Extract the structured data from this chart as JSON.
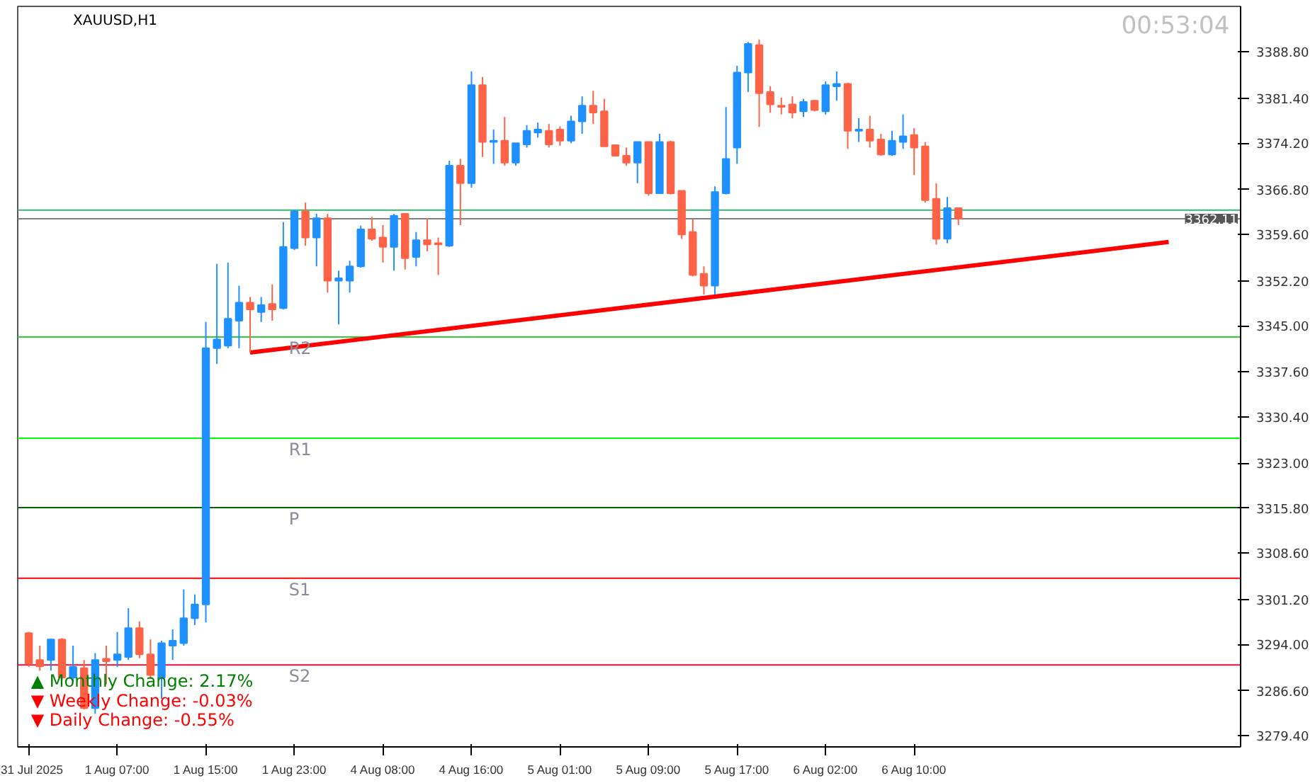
{
  "chart_data": {
    "type": "candlestick",
    "title": "XAUUSD,H1",
    "subtitle": "00:53:04",
    "categories": [
      "31 Jul 2025",
      null,
      null,
      null,
      null,
      null,
      null,
      null,
      "1 Aug 07:00",
      null,
      null,
      null,
      null,
      null,
      null,
      null,
      "1 Aug 15:00",
      null,
      null,
      null,
      null,
      null,
      null,
      null,
      "1 Aug 23:00",
      null,
      null,
      null,
      null,
      null,
      null,
      null,
      "4 Aug 08:00",
      null,
      null,
      null,
      null,
      null,
      null,
      null,
      "4 Aug 16:00",
      null,
      null,
      null,
      null,
      null,
      null,
      null,
      "5 Aug 01:00",
      null,
      null,
      null,
      null,
      null,
      null,
      null,
      "5 Aug 09:00",
      null,
      null,
      null,
      null,
      null,
      null,
      null,
      "5 Aug 17:00",
      null,
      null,
      null,
      null,
      null,
      null,
      null,
      "6 Aug 02:00",
      null,
      null,
      null,
      null,
      null,
      null,
      null,
      "6 Aug 10:00",
      null,
      null,
      null,
      null,
      null,
      null,
      null,
      null,
      null,
      null,
      null,
      null,
      null,
      null,
      null,
      null,
      null,
      null,
      null,
      null,
      null,
      null,
      null,
      null,
      null,
      null,
      null,
      null,
      null
    ],
    "ohlc": [
      [
        3295.8,
        3296.0,
        3290.4,
        3290.9
      ],
      [
        3291.5,
        3293.8,
        3289.8,
        3290.5
      ],
      [
        3291.5,
        3294.8,
        3289.8,
        3294.8
      ],
      [
        3294.8,
        3295.0,
        3288.3,
        3288.7
      ],
      [
        3288.7,
        3293.8,
        3288.0,
        3290.4
      ],
      [
        3290.2,
        3291.5,
        3283.6,
        3283.8
      ],
      [
        3283.8,
        3292.6,
        3282.9,
        3291.5
      ],
      [
        3291.7,
        3293.8,
        3287.6,
        3291.3
      ],
      [
        3291.5,
        3296.0,
        3290.4,
        3292.4
      ],
      [
        3292.0,
        3299.8,
        3291.5,
        3296.6
      ],
      [
        3296.6,
        3297.7,
        3291.8,
        3292.4
      ],
      [
        3292.4,
        3294.8,
        3288.5,
        3289.1
      ],
      [
        3288.7,
        3294.6,
        3285.3,
        3294.2
      ],
      [
        3293.8,
        3296.4,
        3291.5,
        3294.6
      ],
      [
        3294.2,
        3302.8,
        3293.8,
        3298.2
      ],
      [
        3298.2,
        3302.0,
        3297.1,
        3300.4
      ],
      [
        3300.4,
        3345.6,
        3297.5,
        3341.4
      ],
      [
        3341.4,
        3354.9,
        3338.9,
        3342.8
      ],
      [
        3341.8,
        3355.1,
        3341.4,
        3346.1
      ],
      [
        3345.8,
        3351.4,
        3341.4,
        3348.7
      ],
      [
        3348.7,
        3349.6,
        3340.7,
        3347.6
      ],
      [
        3347.2,
        3349.6,
        3345.6,
        3348.3
      ],
      [
        3348.5,
        3351.6,
        3345.8,
        3347.6
      ],
      [
        3347.8,
        3361.6,
        3347.6,
        3357.6
      ],
      [
        3357.4,
        3363.5,
        3357.1,
        3363.3
      ],
      [
        3363.3,
        3364.7,
        3357.8,
        3359.1
      ],
      [
        3359.1,
        3362.9,
        3354.5,
        3362.2
      ],
      [
        3362.2,
        3362.9,
        3350.3,
        3352.2
      ],
      [
        3352.2,
        3353.8,
        3345.2,
        3352.6
      ],
      [
        3352.2,
        3355.4,
        3350.3,
        3354.5
      ],
      [
        3354.5,
        3361.0,
        3354.3,
        3360.4
      ],
      [
        3360.4,
        3362.4,
        3358.6,
        3358.9
      ],
      [
        3359.1,
        3361.1,
        3355.1,
        3357.6
      ],
      [
        3357.6,
        3362.9,
        3353.8,
        3362.6
      ],
      [
        3362.9,
        3362.9,
        3354.0,
        3355.8
      ],
      [
        3356.0,
        3360.0,
        3354.5,
        3358.7
      ],
      [
        3358.7,
        3362.2,
        3356.9,
        3358.0
      ],
      [
        3358.2,
        3359.1,
        3353.1,
        3358.0
      ],
      [
        3357.8,
        3371.4,
        3357.6,
        3370.6
      ],
      [
        3370.6,
        3371.7,
        3361.1,
        3367.8
      ],
      [
        3367.8,
        3385.7,
        3367.1,
        3383.5
      ],
      [
        3383.5,
        3384.8,
        3372.0,
        3374.4
      ],
      [
        3374.4,
        3376.4,
        3370.9,
        3374.6
      ],
      [
        3374.6,
        3378.4,
        3370.6,
        3371.1
      ],
      [
        3371.1,
        3374.2,
        3370.6,
        3374.2
      ],
      [
        3374.0,
        3377.1,
        3373.5,
        3376.2
      ],
      [
        3375.9,
        3377.5,
        3375.1,
        3376.4
      ],
      [
        3376.2,
        3377.3,
        3373.5,
        3374.0
      ],
      [
        3376.4,
        3376.9,
        3373.8,
        3374.6
      ],
      [
        3374.6,
        3378.6,
        3374.2,
        3377.7
      ],
      [
        3377.7,
        3381.7,
        3375.7,
        3380.2
      ],
      [
        3380.2,
        3382.6,
        3377.3,
        3379.1
      ],
      [
        3379.3,
        3381.3,
        3373.7,
        3373.7
      ],
      [
        3373.9,
        3373.9,
        3372.2,
        3372.2
      ],
      [
        3372.2,
        3373.5,
        3370.6,
        3371.1
      ],
      [
        3371.1,
        3374.4,
        3367.8,
        3374.4
      ],
      [
        3374.4,
        3374.4,
        3365.8,
        3366.2
      ],
      [
        3366.2,
        3375.7,
        3366.2,
        3374.4
      ],
      [
        3374.4,
        3374.6,
        3366.0,
        3366.2
      ],
      [
        3366.6,
        3366.6,
        3358.9,
        3359.6
      ],
      [
        3360.0,
        3362.0,
        3352.9,
        3353.1
      ],
      [
        3353.3,
        3354.5,
        3350.0,
        3351.4
      ],
      [
        3351.4,
        3367.3,
        3350.0,
        3366.4
      ],
      [
        3366.2,
        3380.0,
        3366.0,
        3371.7
      ],
      [
        3373.5,
        3386.6,
        3370.9,
        3385.5
      ],
      [
        3385.5,
        3390.4,
        3382.4,
        3390.1
      ],
      [
        3389.9,
        3390.8,
        3376.8,
        3382.2
      ],
      [
        3382.4,
        3383.3,
        3379.1,
        3380.4
      ],
      [
        3380.2,
        3381.5,
        3378.8,
        3380.0
      ],
      [
        3380.4,
        3381.7,
        3378.2,
        3379.1
      ],
      [
        3379.3,
        3381.3,
        3378.4,
        3380.8
      ],
      [
        3381.0,
        3381.1,
        3379.3,
        3379.5
      ],
      [
        3379.3,
        3384.1,
        3378.8,
        3383.5
      ],
      [
        3383.3,
        3385.7,
        3381.0,
        3383.7
      ],
      [
        3383.7,
        3383.9,
        3373.3,
        3376.2
      ],
      [
        3376.2,
        3378.2,
        3374.4,
        3376.4
      ],
      [
        3376.4,
        3378.6,
        3373.5,
        3374.6
      ],
      [
        3374.8,
        3375.7,
        3372.2,
        3372.4
      ],
      [
        3372.4,
        3376.2,
        3372.2,
        3374.6
      ],
      [
        3374.4,
        3378.8,
        3373.3,
        3375.3
      ],
      [
        3375.5,
        3376.6,
        3369.1,
        3373.5
      ],
      [
        3373.7,
        3374.4,
        3364.7,
        3365.1
      ],
      [
        3365.3,
        3367.8,
        3358.0,
        3358.9
      ],
      [
        3358.9,
        3365.6,
        3358.2,
        3363.8
      ],
      [
        3363.8,
        3363.8,
        3361.1,
        3362.11
      ],
      null,
      null,
      null,
      null,
      null,
      null,
      null,
      null,
      null,
      null,
      null,
      null,
      null,
      null,
      null,
      null,
      null,
      null,
      null,
      null,
      null,
      null,
      null,
      null,
      null
    ],
    "colors": [
      "#ff6347",
      "#ff6347",
      "#1e90ff",
      "#ff6347",
      "#1e90ff",
      "#ff6347",
      "#1e90ff",
      "#ff6347",
      "#1e90ff",
      "#1e90ff",
      "#ff6347",
      "#ff6347",
      "#1e90ff",
      "#1e90ff",
      "#1e90ff",
      "#1e90ff",
      "#1e90ff",
      "#1e90ff",
      "#1e90ff",
      "#1e90ff",
      "#ff6347",
      "#1e90ff",
      "#ff6347",
      "#1e90ff",
      "#1e90ff",
      "#ff6347",
      "#1e90ff",
      "#ff6347",
      "#1e90ff",
      "#1e90ff",
      "#1e90ff",
      "#ff6347",
      "#ff6347",
      "#1e90ff",
      "#ff6347",
      "#1e90ff",
      "#ff6347",
      "#ff6347",
      "#1e90ff",
      "#ff6347",
      "#1e90ff",
      "#ff6347",
      "#1e90ff",
      "#ff6347",
      "#1e90ff",
      "#1e90ff",
      "#1e90ff",
      "#ff6347",
      "#ff6347",
      "#1e90ff",
      "#1e90ff",
      "#ff6347",
      "#ff6347",
      "#ff6347",
      "#ff6347",
      "#1e90ff",
      "#ff6347",
      "#1e90ff",
      "#ff6347",
      "#ff6347",
      "#ff6347",
      "#ff6347",
      "#1e90ff",
      "#1e90ff",
      "#1e90ff",
      "#1e90ff",
      "#ff6347",
      "#ff6347",
      "#ff6347",
      "#ff6347",
      "#1e90ff",
      "#ff6347",
      "#1e90ff",
      "#1e90ff",
      "#ff6347",
      "#1e90ff",
      "#ff6347",
      "#ff6347",
      "#1e90ff",
      "#1e90ff",
      "#ff6347",
      "#ff6347",
      "#ff6347",
      "#1e90ff",
      "#ff6347",
      null,
      null,
      null,
      null,
      null,
      null,
      null,
      null,
      null,
      null,
      null,
      null,
      null,
      null,
      null,
      null,
      null,
      null,
      null,
      null,
      null,
      null,
      null,
      null,
      null
    ],
    "series": [
      {
        "type": "line",
        "color": "#ff0000",
        "values": [
          null,
          null,
          null,
          null,
          null,
          null,
          null,
          null,
          null,
          null,
          null,
          null,
          null,
          null,
          null,
          null,
          null,
          null,
          null,
          null,
          3340.7,
          null,
          null,
          null,
          null,
          null,
          null,
          null,
          null,
          null,
          null,
          null,
          null,
          null,
          null,
          null,
          null,
          null,
          null,
          null,
          null,
          null,
          null,
          null,
          null,
          null,
          null,
          null,
          null,
          null,
          null,
          null,
          null,
          null,
          null,
          null,
          null,
          null,
          null,
          null,
          null,
          null,
          null,
          null,
          null,
          null,
          null,
          null,
          null,
          null,
          null,
          null,
          null,
          null,
          null,
          null,
          null,
          null,
          null,
          null,
          null,
          null,
          null,
          null,
          null,
          null,
          null,
          null,
          null,
          null,
          null,
          null,
          null,
          null,
          null,
          null,
          null,
          null,
          null,
          null,
          null,
          null,
          null,
          3358.4,
          null,
          null,
          null,
          null,
          null,
          null
        ]
      }
    ],
    "ylim": [
      3277.6,
      3396.1
    ],
    "yticks": [
      {
        "value": 3279.4,
        "label": "3279.40"
      },
      {
        "value": 3286.6,
        "label": "3286.60"
      },
      {
        "value": 3294.0,
        "label": "3294.00"
      },
      {
        "value": 3301.2,
        "label": "3301.20"
      },
      {
        "value": 3308.6,
        "label": "3308.60"
      },
      {
        "value": 3315.8,
        "label": "3315.80"
      },
      {
        "value": 3323.0,
        "label": "3323.00"
      },
      {
        "value": 3330.4,
        "label": "3330.40"
      },
      {
        "value": 3337.6,
        "label": "3337.60"
      },
      {
        "value": 3345.0,
        "label": "3345.00"
      },
      {
        "value": 3352.2,
        "label": "3352.20"
      },
      {
        "value": 3359.6,
        "label": "3359.60"
      },
      {
        "value": 3366.8,
        "label": "3366.80"
      },
      {
        "value": 3374.2,
        "label": "3374.20"
      },
      {
        "value": 3381.4,
        "label": "3381.40"
      },
      {
        "value": 3388.8,
        "label": "3388.80"
      }
    ],
    "ref_lines": [
      {
        "axis": "y",
        "value": 3363.5,
        "label": null,
        "color": "#3cb371"
      },
      {
        "axis": "y",
        "value": 3362.11,
        "label": null,
        "color": "#808080"
      },
      {
        "axis": "y",
        "value": 3343.2,
        "label": "R2",
        "color": "#32cd32"
      },
      {
        "axis": "y",
        "value": 3327.0,
        "label": "R1",
        "color": "#00ff00"
      },
      {
        "axis": "y",
        "value": 3315.9,
        "label": "P",
        "color": "#006400"
      },
      {
        "axis": "y",
        "value": 3304.6,
        "label": "S1",
        "color": "#ff0000"
      },
      {
        "axis": "y",
        "value": 3290.7,
        "label": "S2",
        "color": "#dc143c"
      }
    ],
    "annotations": [
      "▲ Monthly Change: 2.17%",
      "▼ Weekly Change: -0.03%",
      "▼ Daily Change: -0.55%",
      {
        "text": "3362.11",
        "y": 3362.11
      }
    ],
    "grid": false
  }
}
